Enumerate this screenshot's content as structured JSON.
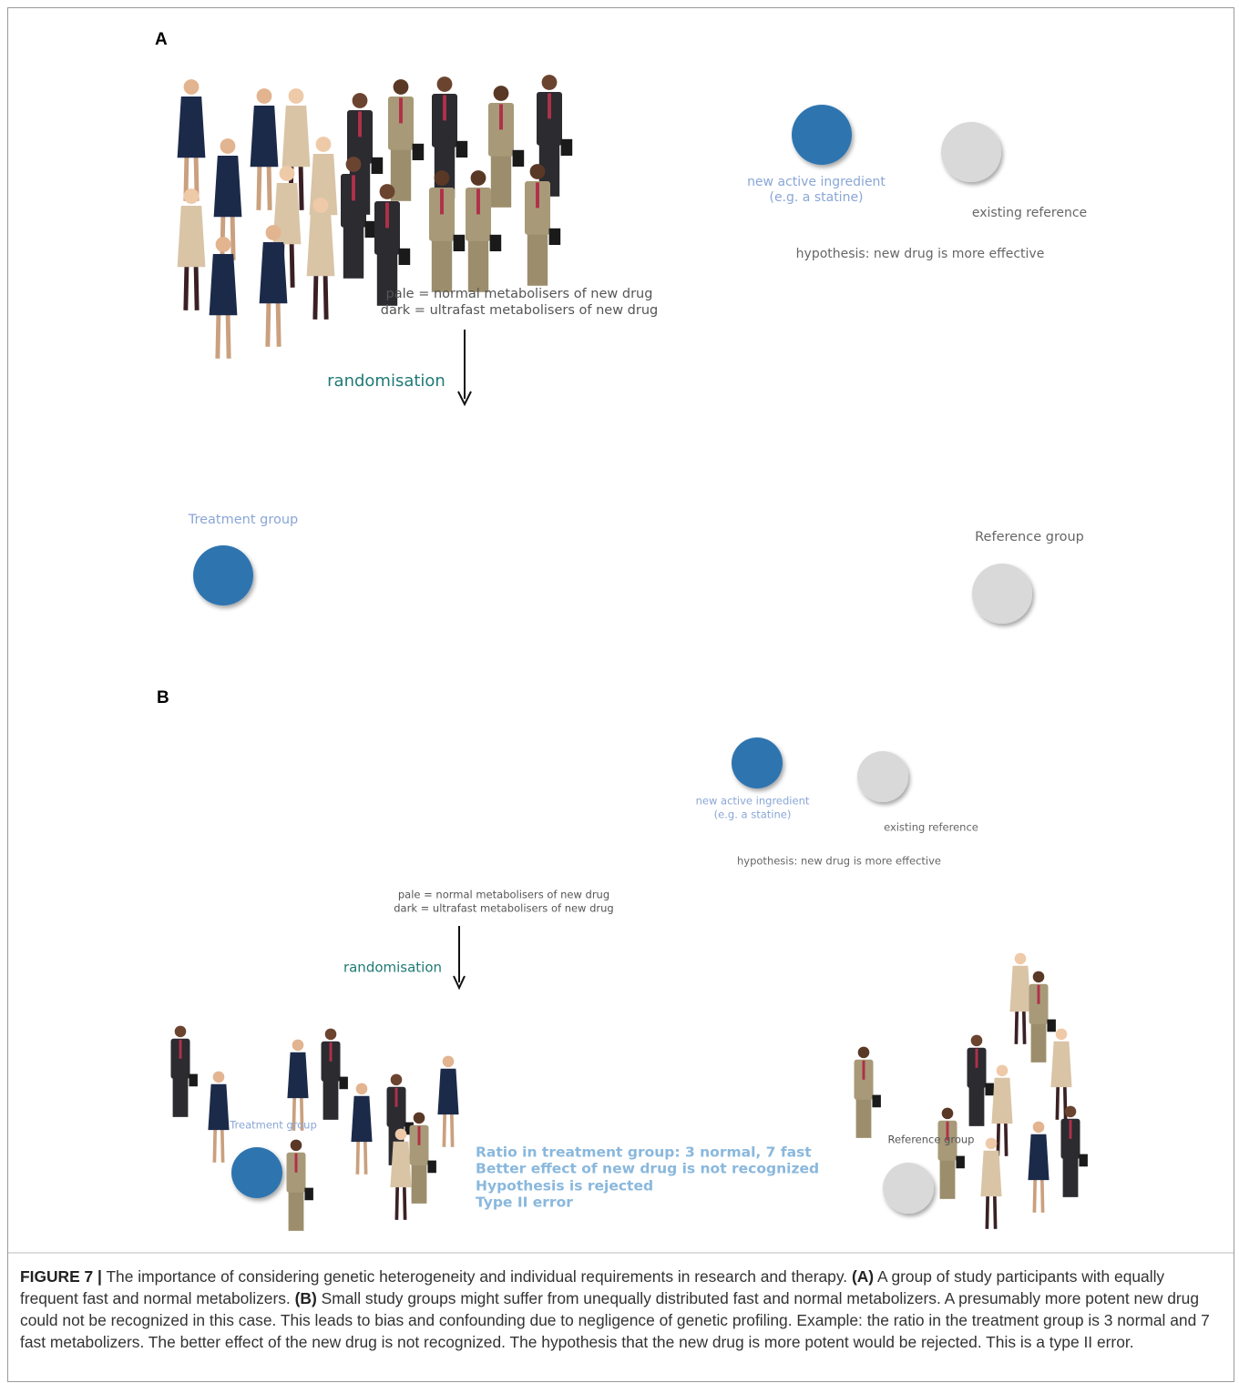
{
  "panel_a": {
    "label": "A",
    "drug_new": "new active ingredient",
    "drug_new_example": "(e.g. a statine)",
    "drug_reference": "existing reference",
    "hypothesis": "hypothesis: new drug is more effective",
    "legend_pale": "pale = normal metabolisers of new drug",
    "legend_dark": "dark = ultrafast metabolisers of new drug",
    "arrow_label": "randomisation",
    "treatment_group": "Treatment group",
    "reference_group": "Reference group"
  },
  "panel_b": {
    "label": "B",
    "drug_new": "new active ingredient",
    "drug_new_example": "(e.g. a statine)",
    "drug_reference": "existing reference",
    "hypothesis": "hypothesis: new drug is more effective",
    "legend_pale": "pale = normal metabolisers of new drug",
    "legend_dark": "dark = ultrafast metabolisers of new drug",
    "arrow_label": "randomisation",
    "treatment_group": "Treatment group",
    "reference_group": "Reference group",
    "result_lines": [
      "Ratio in treatment group: 3 normal, 7 fast",
      "Better effect of new drug  is not recognized",
      "Hypothesis is rejected",
      "Type II error"
    ]
  },
  "caption": {
    "figure_label": "FIGURE 7 |",
    "text": "The importance of considering genetic heterogeneity and individual requirements in research and therapy.",
    "label_a": "(A)",
    "text_a": "A group of study participants with equally frequent fast and normal metabolizers.",
    "label_b": "(B)",
    "text_b": "Small study groups might suffer from unequally distributed fast and normal metabolizers. A presumably more potent new drug could not be recognized in this case. This leads to bias and confounding due to negligence of genetic profiling. Example: the ratio in the treatment group is 3 normal and 7 fast metabolizers. The better effect of the new drug is not recognized. The hypothesis that the new drug is more potent would be rejected. This is a type II error."
  }
}
